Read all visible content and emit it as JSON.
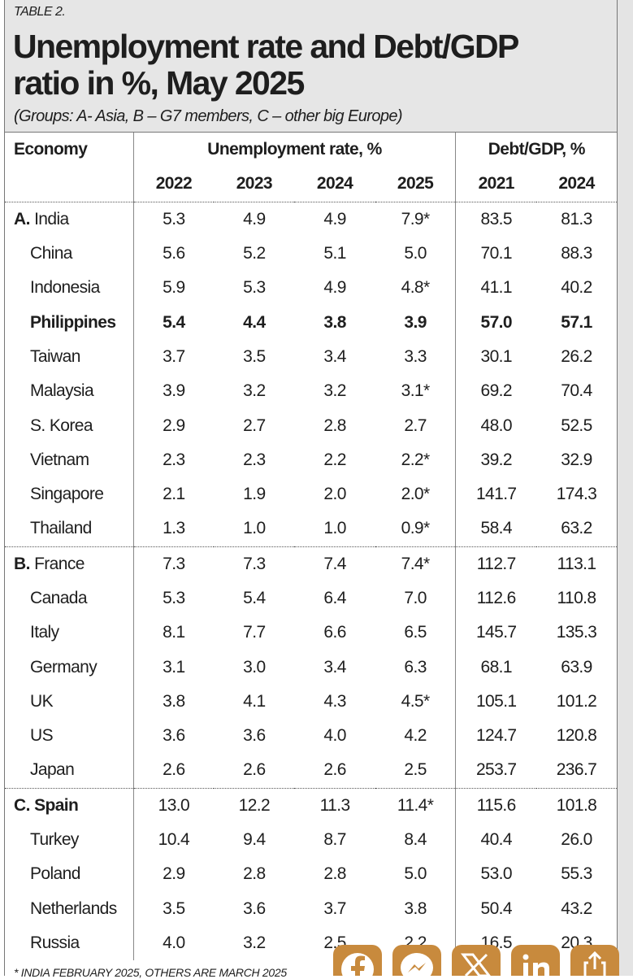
{
  "header": {
    "label": "TABLE 2.",
    "title_lines": [
      "Unemployment rate and Debt/GDP",
      "ratio in %, May 2025"
    ],
    "subtitle": "(Groups: A- Asia, B – G7 members, C – other big Europe)"
  },
  "table": {
    "economy_header": "Economy",
    "groups": [
      {
        "label": "Unemployment rate, %",
        "span": 4
      },
      {
        "label": "Debt/GDP, %",
        "span": 2
      }
    ],
    "years": [
      "2022",
      "2023",
      "2024",
      "2025",
      "2021",
      "2024"
    ],
    "rows": [
      {
        "group": "A.",
        "economy": "India",
        "values": [
          "5.3",
          "4.9",
          "4.9",
          "7.9*",
          "83.5",
          "81.3"
        ]
      },
      {
        "economy": "China",
        "values": [
          "5.6",
          "5.2",
          "5.1",
          "5.0",
          "70.1",
          "88.3"
        ]
      },
      {
        "economy": "Indonesia",
        "values": [
          "5.9",
          "5.3",
          "4.9",
          "4.8*",
          "41.1",
          "40.2"
        ]
      },
      {
        "economy": "Philippines",
        "bold": true,
        "values": [
          "5.4",
          "4.4",
          "3.8",
          "3.9",
          "57.0",
          "57.1"
        ]
      },
      {
        "economy": "Taiwan",
        "values": [
          "3.7",
          "3.5",
          "3.4",
          "3.3",
          "30.1",
          "26.2"
        ]
      },
      {
        "economy": "Malaysia",
        "values": [
          "3.9",
          "3.2",
          "3.2",
          "3.1*",
          "69.2",
          "70.4"
        ]
      },
      {
        "economy": "S. Korea",
        "values": [
          "2.9",
          "2.7",
          "2.8",
          "2.7",
          "48.0",
          "52.5"
        ]
      },
      {
        "economy": "Vietnam",
        "values": [
          "2.3",
          "2.3",
          "2.2",
          "2.2*",
          "39.2",
          "32.9"
        ]
      },
      {
        "economy": "Singapore",
        "values": [
          "2.1",
          "1.9",
          "2.0",
          "2.0*",
          "141.7",
          "174.3"
        ]
      },
      {
        "economy": "Thailand",
        "values": [
          "1.3",
          "1.0",
          "1.0",
          "0.9*",
          "58.4",
          "63.2"
        ]
      },
      {
        "group": "B.",
        "economy": "France",
        "values": [
          "7.3",
          "7.3",
          "7.4",
          "7.4*",
          "112.7",
          "113.1"
        ]
      },
      {
        "economy": "Canada",
        "values": [
          "5.3",
          "5.4",
          "6.4",
          "7.0",
          "112.6",
          "110.8"
        ]
      },
      {
        "economy": "Italy",
        "values": [
          "8.1",
          "7.7",
          "6.6",
          "6.5",
          "145.7",
          "135.3"
        ]
      },
      {
        "economy": "Germany",
        "values": [
          "3.1",
          "3.0",
          "3.4",
          "6.3",
          "68.1",
          "63.9"
        ]
      },
      {
        "economy": "UK",
        "values": [
          "3.8",
          "4.1",
          "4.3",
          "4.5*",
          "105.1",
          "101.2"
        ]
      },
      {
        "economy": "US",
        "values": [
          "3.6",
          "3.6",
          "4.0",
          "4.2",
          "124.7",
          "120.8"
        ]
      },
      {
        "economy": "Japan",
        "values": [
          "2.6",
          "2.6",
          "2.6",
          "2.5",
          "253.7",
          "236.7"
        ]
      },
      {
        "group": "C.",
        "economy": "Spain",
        "name_bold": true,
        "values": [
          "13.0",
          "12.2",
          "11.3",
          "11.4*",
          "115.6",
          "101.8"
        ]
      },
      {
        "economy": "Turkey",
        "values": [
          "10.4",
          "9.4",
          "8.7",
          "8.4",
          "40.4",
          "26.0"
        ]
      },
      {
        "economy": "Poland",
        "values": [
          "2.9",
          "2.8",
          "2.8",
          "5.0",
          "53.0",
          "55.3"
        ]
      },
      {
        "economy": "Netherlands",
        "values": [
          "3.5",
          "3.6",
          "3.7",
          "3.8",
          "50.4",
          "43.2"
        ]
      },
      {
        "economy": "Russia",
        "values": [
          "4.0",
          "3.2",
          "2.5",
          "2.2",
          "16.5",
          "20.3"
        ]
      }
    ]
  },
  "footnote": "* INDIA FEBRUARY 2025, OTHERS ARE MARCH 2025"
}
